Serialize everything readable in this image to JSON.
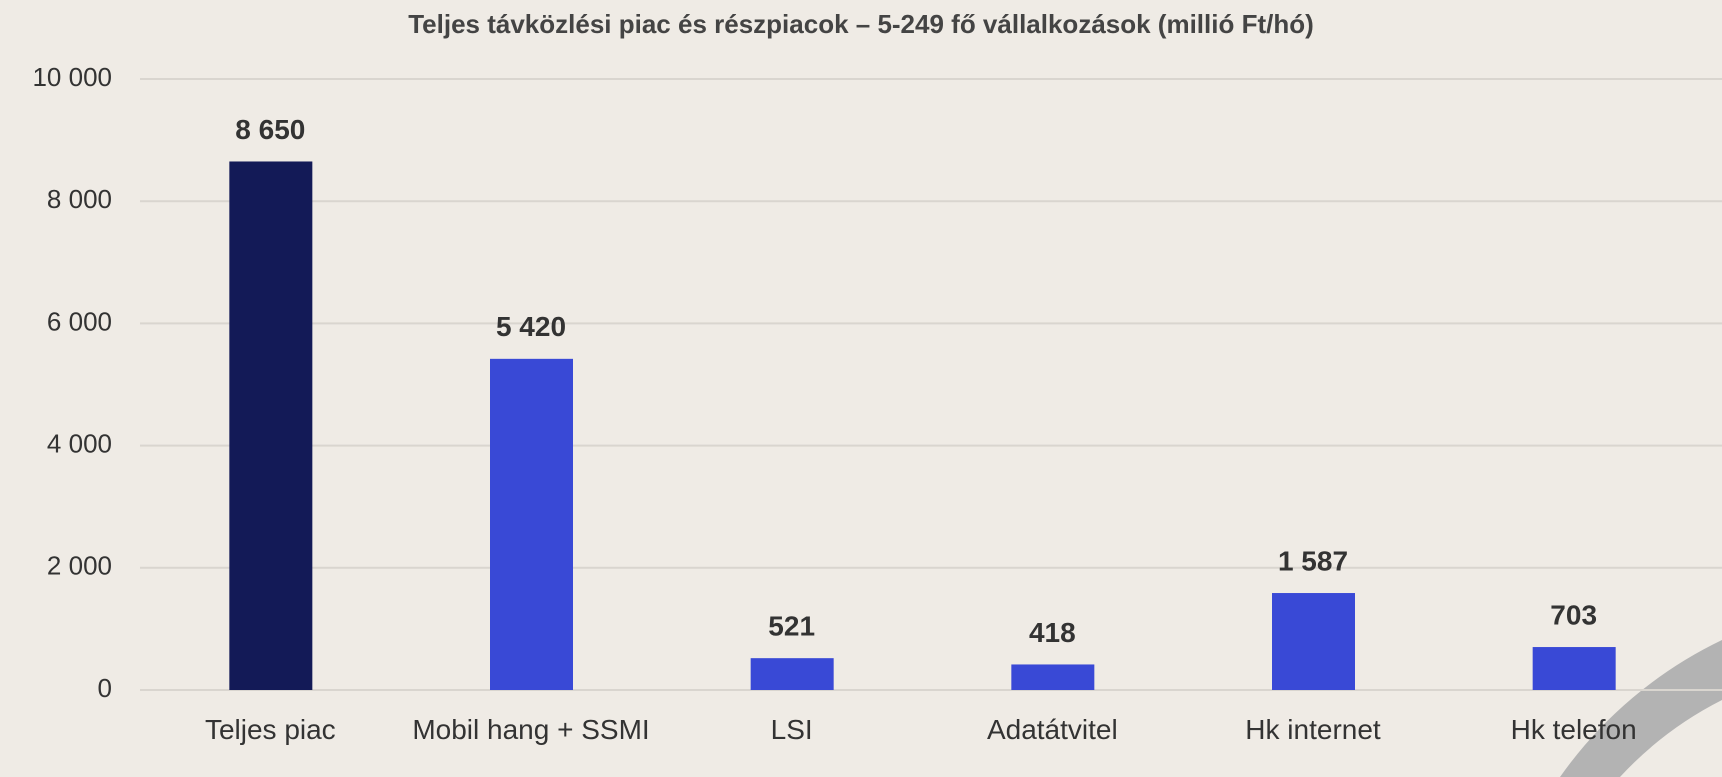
{
  "chart_data": {
    "type": "bar",
    "title": "Teljes távközlési piac és részpiacok – 5-249 fő vállalkozások (millió Ft/hó)",
    "categories": [
      "Teljes piac",
      "Mobil hang + SSMI",
      "LSI",
      "Adatátvitel",
      "Hk internet",
      "Hk telefon"
    ],
    "values": [
      8650,
      5420,
      521,
      418,
      1587,
      703
    ],
    "value_labels": [
      "8 650",
      "5 420",
      "521",
      "418",
      "1 587",
      "703"
    ],
    "colors": [
      "#131a57",
      "#3949d6",
      "#3949d6",
      "#3949d6",
      "#3949d6",
      "#3949d6"
    ],
    "ylim": [
      0,
      10000
    ],
    "yticks": [
      0,
      {
        "value": 2000,
        "label": "2 000"
      },
      {
        "value": 4000,
        "label": "4 000"
      },
      {
        "value": 6000,
        "label": "6 000"
      },
      {
        "value": 8000,
        "label": "8 000"
      },
      {
        "value": 10000,
        "label": "10 000"
      }
    ],
    "grid": true
  }
}
